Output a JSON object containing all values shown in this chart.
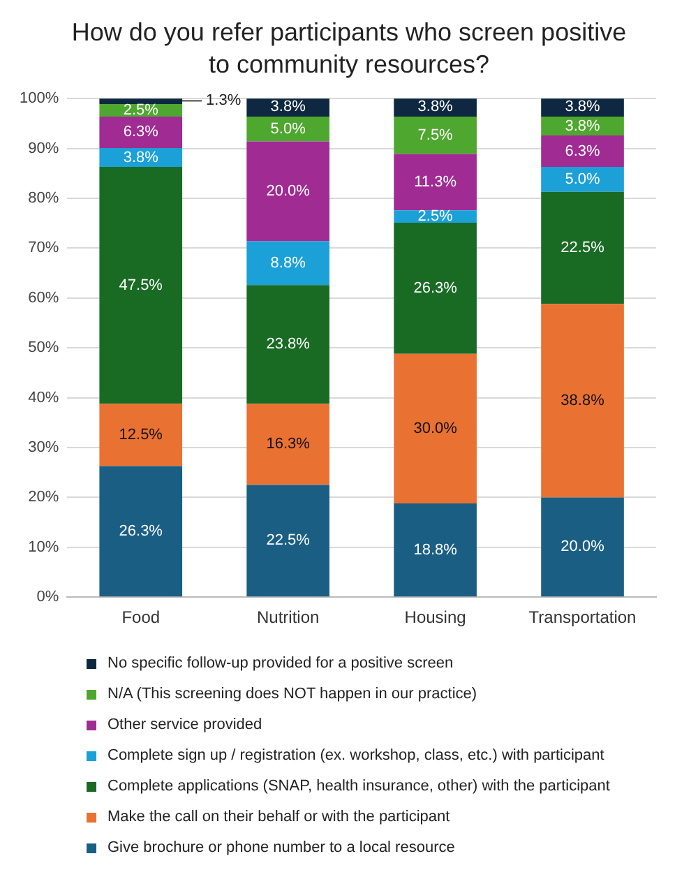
{
  "chart_data": {
    "type": "bar",
    "stacked": true,
    "title": "How do you refer participants who screen positive to community resources?",
    "categories": [
      "Food",
      "Nutrition",
      "Housing",
      "Transportation"
    ],
    "ylim": [
      0,
      100
    ],
    "yticks": [
      {
        "value": 0,
        "label": "0%"
      },
      {
        "value": 10,
        "label": "10%"
      },
      {
        "value": 20,
        "label": "20%"
      },
      {
        "value": 30,
        "label": "30%"
      },
      {
        "value": 40,
        "label": "40%"
      },
      {
        "value": 50,
        "label": "50%"
      },
      {
        "value": 60,
        "label": "60%"
      },
      {
        "value": 70,
        "label": "70%"
      },
      {
        "value": 80,
        "label": "80%"
      },
      {
        "value": 90,
        "label": "90%"
      },
      {
        "value": 100,
        "label": "100%"
      }
    ],
    "grid": "y",
    "legend": "bottom",
    "series": [
      {
        "name": "Give brochure or phone number to a local resource",
        "color": "#1b5e84",
        "values": [
          26.3,
          22.5,
          18.8,
          20.0
        ],
        "value_labels": [
          "26.3%",
          "22.5%",
          "18.8%",
          "20.0%"
        ]
      },
      {
        "name": "Make the call on their behalf or with the participant",
        "color": "#e97132",
        "values": [
          12.5,
          16.3,
          30.0,
          38.8
        ],
        "value_labels": [
          "12.5%",
          "16.3%",
          "30.0%",
          "38.8%"
        ]
      },
      {
        "name": "Complete applications (SNAP, health insurance, other) with the participant",
        "color": "#196b24",
        "values": [
          47.5,
          23.8,
          26.3,
          22.5
        ],
        "value_labels": [
          "47.5%",
          "23.8%",
          "26.3%",
          "22.5%"
        ]
      },
      {
        "name": "Complete sign up / registration (ex. workshop, class, etc.) with participant",
        "color": "#1ba0d8",
        "values": [
          3.8,
          8.8,
          2.5,
          5.0
        ],
        "value_labels": [
          "3.8%",
          "8.8%",
          "2.5%",
          "5.0%"
        ]
      },
      {
        "name": "Other service provided",
        "color": "#a02b93",
        "values": [
          6.3,
          20.0,
          11.3,
          6.3
        ],
        "value_labels": [
          "6.3%",
          "20.0%",
          "11.3%",
          "6.3%"
        ]
      },
      {
        "name": "N/A (This screening does NOT happen in our practice)",
        "color": "#4ea72e",
        "values": [
          2.5,
          5.0,
          7.5,
          3.8
        ],
        "value_labels": [
          "2.5%",
          "5.0%",
          "7.5%",
          "3.8%"
        ]
      },
      {
        "name": "No specific follow-up provided for a positive screen",
        "color": "#0e2841",
        "values": [
          1.3,
          3.8,
          3.8,
          3.8
        ],
        "value_labels": [
          "1.3%",
          "3.8%",
          "3.8%",
          "3.8%"
        ]
      }
    ]
  }
}
